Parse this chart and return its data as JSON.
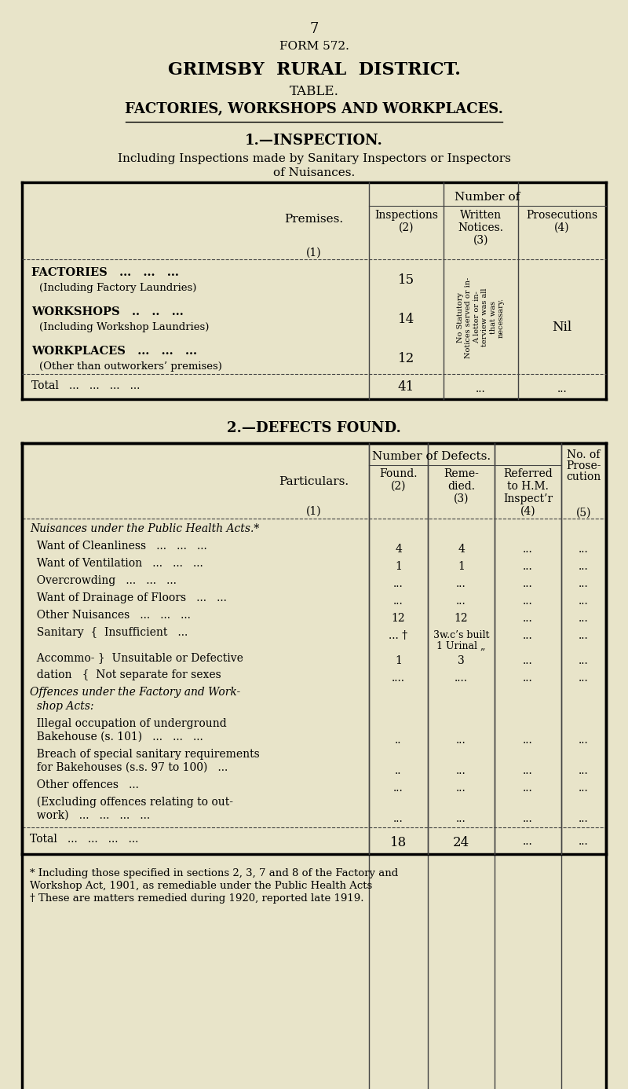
{
  "page_number": "7",
  "form_number": "FORM 572.",
  "title_line1": "GRIMSBY  RURAL  DISTRICT.",
  "title_line2": "TABLE.",
  "title_line3": "FACTORIES, WORKSHOPS AND WORKPLACES.",
  "section1_title": "1.—INSPECTION.",
  "section1_sub1": "Including Inspections made by Sanitary Inspectors or Inspectors",
  "section1_sub2": "of Nuisances.",
  "section2_title": "2.—DEFECTS FOUND.",
  "bg_color": "#e8e4c9",
  "footnote1": "* Including those specified in sections 2, 3, 7 and 8 of the Factory and",
  "footnote2": "Workshop Act, 1901, as remediable under the Public Health Acts",
  "footnote3": "† These are matters remedied during 1920, reported late 1919.",
  "rotated_text": "No Statutory\nNotices served or in-\nA letter or in-\nterview was all\nthat was\nnecessary."
}
